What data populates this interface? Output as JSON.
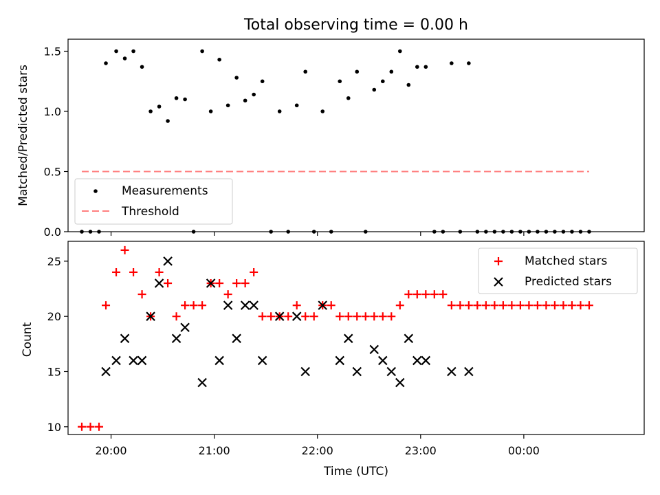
{
  "chart_data": [
    {
      "type": "scatter",
      "title": "Total observing time = 0.00 h",
      "xlabel": "",
      "ylabel": "Matched/Predicted stars",
      "xlim": [
        "19:35",
        "01:10"
      ],
      "ylim": [
        0,
        1.6
      ],
      "yticks": [
        "0.0",
        "0.5",
        "1.0",
        "1.5"
      ],
      "legend_position": "lower-left",
      "series": [
        {
          "name": "Measurements",
          "marker": "dot",
          "color": "#000000",
          "points": [
            [
              "19:43",
              0
            ],
            [
              "19:48",
              0
            ],
            [
              "19:53",
              0
            ],
            [
              "19:57",
              1.4
            ],
            [
              "20:03",
              1.5
            ],
            [
              "20:08",
              1.44
            ],
            [
              "20:13",
              1.5
            ],
            [
              "20:18",
              1.37
            ],
            [
              "20:23",
              1.0
            ],
            [
              "20:28",
              1.04
            ],
            [
              "20:33",
              0.92
            ],
            [
              "20:38",
              1.11
            ],
            [
              "20:43",
              1.1
            ],
            [
              "20:48",
              0
            ],
            [
              "20:53",
              1.5
            ],
            [
              "20:58",
              1.0
            ],
            [
              "21:03",
              1.43
            ],
            [
              "21:08",
              1.05
            ],
            [
              "21:13",
              1.28
            ],
            [
              "21:18",
              1.09
            ],
            [
              "21:23",
              1.14
            ],
            [
              "21:28",
              1.25
            ],
            [
              "21:33",
              0
            ],
            [
              "21:38",
              1.0
            ],
            [
              "21:43",
              0
            ],
            [
              "21:48",
              1.05
            ],
            [
              "21:53",
              1.33
            ],
            [
              "21:58",
              0
            ],
            [
              "22:03",
              1.0
            ],
            [
              "22:08",
              0
            ],
            [
              "22:13",
              1.25
            ],
            [
              "22:18",
              1.11
            ],
            [
              "22:23",
              1.33
            ],
            [
              "22:28",
              0
            ],
            [
              "22:33",
              1.18
            ],
            [
              "22:38",
              1.25
            ],
            [
              "22:43",
              1.33
            ],
            [
              "22:48",
              1.5
            ],
            [
              "22:53",
              1.22
            ],
            [
              "22:58",
              1.37
            ],
            [
              "23:03",
              1.37
            ],
            [
              "23:08",
              0
            ],
            [
              "23:13",
              0
            ],
            [
              "23:18",
              1.4
            ],
            [
              "23:23",
              0
            ],
            [
              "23:28",
              1.4
            ],
            [
              "23:33",
              0
            ],
            [
              "23:38",
              0
            ],
            [
              "23:43",
              0
            ],
            [
              "23:48",
              0
            ],
            [
              "23:53",
              0
            ],
            [
              "23:58",
              0
            ],
            [
              "00:03",
              0
            ],
            [
              "00:08",
              0
            ],
            [
              "00:13",
              0
            ],
            [
              "00:18",
              0
            ],
            [
              "00:23",
              0
            ],
            [
              "00:28",
              0
            ],
            [
              "00:33",
              0
            ],
            [
              "00:38",
              0
            ]
          ]
        },
        {
          "name": "Threshold",
          "type": "line",
          "style": "dashed",
          "color": "#ff7f7f",
          "x": [
            "19:43",
            "00:38"
          ],
          "y": [
            0.5,
            0.5
          ]
        }
      ]
    },
    {
      "type": "scatter",
      "title": "",
      "xlabel": "Time (UTC)",
      "ylabel": "Count",
      "xlim": [
        "19:35",
        "01:10"
      ],
      "ylim": [
        9.3,
        26.8
      ],
      "xticks": [
        "20:00",
        "21:00",
        "22:00",
        "23:00",
        "00:00"
      ],
      "yticks": [
        "10",
        "15",
        "20",
        "25"
      ],
      "legend_position": "top-right",
      "series": [
        {
          "name": "Matched stars",
          "marker": "plus",
          "color": "#ff0000",
          "points": [
            [
              "19:43",
              10
            ],
            [
              "19:48",
              10
            ],
            [
              "19:53",
              10
            ],
            [
              "19:57",
              21
            ],
            [
              "20:03",
              24
            ],
            [
              "20:08",
              26
            ],
            [
              "20:13",
              24
            ],
            [
              "20:18",
              22
            ],
            [
              "20:23",
              20
            ],
            [
              "20:28",
              24
            ],
            [
              "20:33",
              23
            ],
            [
              "20:38",
              20
            ],
            [
              "20:43",
              21
            ],
            [
              "20:48",
              21
            ],
            [
              "20:53",
              21
            ],
            [
              "20:58",
              23
            ],
            [
              "21:03",
              23
            ],
            [
              "21:08",
              22
            ],
            [
              "21:13",
              23
            ],
            [
              "21:18",
              23
            ],
            [
              "21:23",
              24
            ],
            [
              "21:28",
              20
            ],
            [
              "21:33",
              20
            ],
            [
              "21:38",
              20
            ],
            [
              "21:43",
              20
            ],
            [
              "21:48",
              21
            ],
            [
              "21:53",
              20
            ],
            [
              "21:58",
              20
            ],
            [
              "22:03",
              21
            ],
            [
              "22:08",
              21
            ],
            [
              "22:13",
              20
            ],
            [
              "22:18",
              20
            ],
            [
              "22:23",
              20
            ],
            [
              "22:28",
              20
            ],
            [
              "22:33",
              20
            ],
            [
              "22:38",
              20
            ],
            [
              "22:43",
              20
            ],
            [
              "22:48",
              21
            ],
            [
              "22:53",
              22
            ],
            [
              "22:58",
              22
            ],
            [
              "23:03",
              22
            ],
            [
              "23:08",
              22
            ],
            [
              "23:13",
              22
            ],
            [
              "23:18",
              21
            ],
            [
              "23:23",
              21
            ],
            [
              "23:28",
              21
            ],
            [
              "23:33",
              21
            ],
            [
              "23:38",
              21
            ],
            [
              "23:43",
              21
            ],
            [
              "23:48",
              21
            ],
            [
              "23:53",
              21
            ],
            [
              "23:58",
              21
            ],
            [
              "00:03",
              21
            ],
            [
              "00:08",
              21
            ],
            [
              "00:13",
              21
            ],
            [
              "00:18",
              21
            ],
            [
              "00:23",
              21
            ],
            [
              "00:28",
              21
            ],
            [
              "00:33",
              21
            ],
            [
              "00:38",
              21
            ]
          ]
        },
        {
          "name": "Predicted stars",
          "marker": "x",
          "color": "#000000",
          "points": [
            [
              "19:57",
              15
            ],
            [
              "20:03",
              16
            ],
            [
              "20:08",
              18
            ],
            [
              "20:13",
              16
            ],
            [
              "20:18",
              16
            ],
            [
              "20:23",
              20
            ],
            [
              "20:28",
              23
            ],
            [
              "20:33",
              25
            ],
            [
              "20:38",
              18
            ],
            [
              "20:43",
              19
            ],
            [
              "20:53",
              14
            ],
            [
              "20:58",
              23
            ],
            [
              "21:03",
              16
            ],
            [
              "21:08",
              21
            ],
            [
              "21:13",
              18
            ],
            [
              "21:18",
              21
            ],
            [
              "21:23",
              21
            ],
            [
              "21:28",
              16
            ],
            [
              "21:38",
              20
            ],
            [
              "21:48",
              20
            ],
            [
              "21:53",
              15
            ],
            [
              "22:03",
              21
            ],
            [
              "22:13",
              16
            ],
            [
              "22:18",
              18
            ],
            [
              "22:23",
              15
            ],
            [
              "22:33",
              17
            ],
            [
              "22:38",
              16
            ],
            [
              "22:43",
              15
            ],
            [
              "22:48",
              14
            ],
            [
              "22:53",
              18
            ],
            [
              "22:58",
              16
            ],
            [
              "23:03",
              16
            ],
            [
              "23:18",
              15
            ],
            [
              "23:28",
              15
            ]
          ]
        }
      ]
    }
  ]
}
